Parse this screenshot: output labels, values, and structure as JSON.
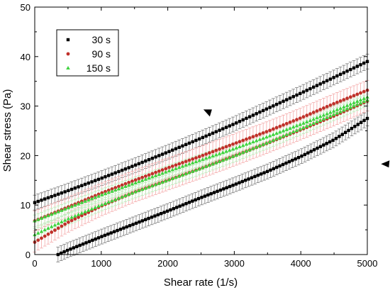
{
  "chart_data": {
    "type": "scatter",
    "xlabel": "Shear rate (1/s)",
    "ylabel": "Shear stress (Pa)",
    "xlim": [
      0,
      5000
    ],
    "ylim": [
      0,
      50
    ],
    "x_ticks": [
      0,
      1000,
      2000,
      3000,
      4000,
      5000
    ],
    "y_ticks": [
      0,
      10,
      20,
      30,
      40,
      50
    ],
    "grid": false,
    "legend_position": "top-left",
    "error_bars": true,
    "series": [
      {
        "name": "30 s",
        "color": "#000000",
        "marker": "square",
        "up": {
          "x": [
            0,
            500,
            1000,
            1500,
            2000,
            2500,
            3000,
            3500,
            4000,
            4500,
            5000
          ],
          "y": [
            10.5,
            12.9,
            15.4,
            18.0,
            20.7,
            23.5,
            26.4,
            29.5,
            32.6,
            35.8,
            39.0
          ]
        },
        "down": {
          "x": [
            350,
            500,
            1000,
            1500,
            2000,
            2500,
            3000,
            3500,
            4000,
            4500,
            5000
          ],
          "y": [
            0.0,
            0.9,
            3.6,
            6.2,
            8.8,
            11.5,
            14.1,
            16.8,
            19.8,
            23.2,
            27.5
          ]
        },
        "error": 1.5
      },
      {
        "name": "90 s",
        "color": "#c0302a",
        "marker": "circle",
        "up": {
          "x": [
            0,
            500,
            1000,
            1500,
            2000,
            2500,
            3000,
            3500,
            4000,
            4500,
            5000
          ],
          "y": [
            6.8,
            9.6,
            12.4,
            15.0,
            17.5,
            19.9,
            22.4,
            24.9,
            27.6,
            30.5,
            33.2
          ]
        },
        "down": {
          "x": [
            0,
            500,
            1000,
            1500,
            2000,
            2500,
            3000,
            3500,
            4000,
            4500,
            5000
          ],
          "y": [
            2.5,
            6.5,
            9.8,
            12.6,
            15.0,
            17.4,
            19.9,
            22.5,
            25.2,
            28.0,
            31.0
          ]
        },
        "error": 2.0
      },
      {
        "name": "150 s",
        "color": "#3fd33f",
        "marker": "triangle",
        "up": {
          "x": [
            0,
            500,
            1000,
            1500,
            2000,
            2500,
            3000,
            3500,
            4000,
            4500,
            5000
          ],
          "y": [
            6.8,
            9.4,
            12.0,
            14.4,
            16.8,
            19.1,
            21.4,
            23.8,
            26.3,
            29.0,
            31.8
          ]
        },
        "down": {
          "x": [
            0,
            500,
            1000,
            1500,
            2000,
            2500,
            3000,
            3500,
            4000,
            4500,
            5000
          ],
          "y": [
            4.0,
            7.2,
            10.0,
            12.6,
            15.0,
            17.4,
            19.9,
            22.6,
            25.4,
            28.3,
            31.2
          ]
        },
        "error": 1.2
      }
    ],
    "annotations": [
      {
        "shape": "triangle-down",
        "x": 2600,
        "y": 28.6
      },
      {
        "shape": "triangle-left",
        "x": 5270,
        "y": 18.3
      }
    ]
  }
}
